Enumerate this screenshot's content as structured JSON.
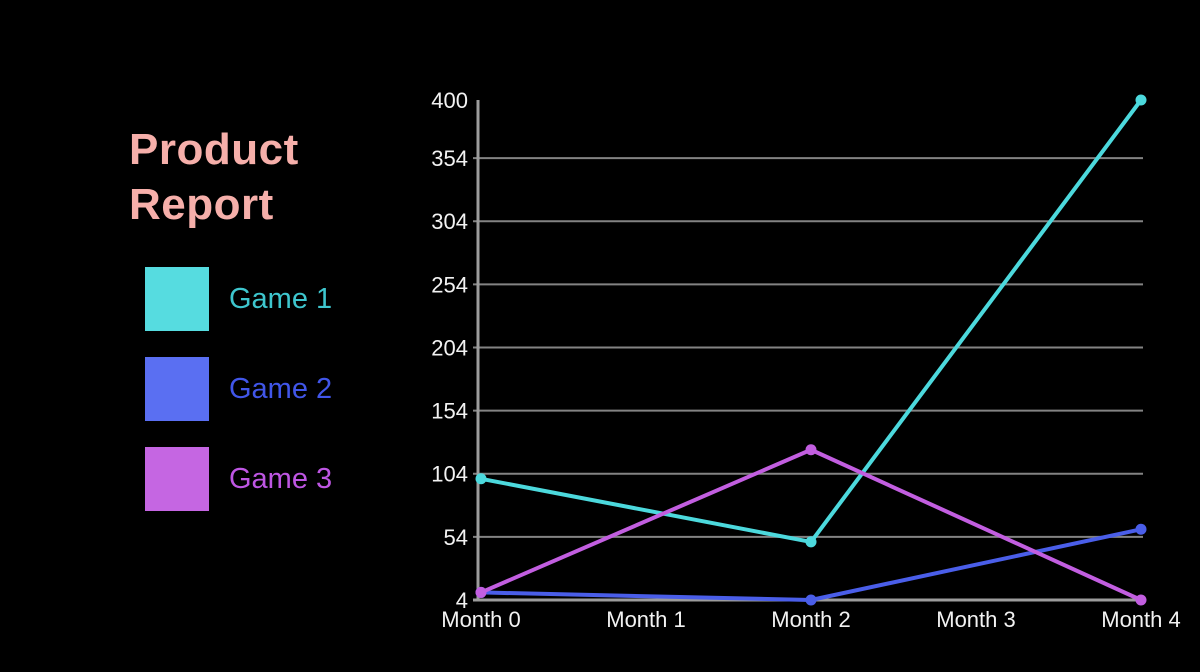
{
  "title": {
    "text": "Product Report",
    "color": "#f6afaa"
  },
  "legend": {
    "items": [
      {
        "label": "Game 1",
        "swatch_color": "#56dce0",
        "label_color": "#3ec6ce"
      },
      {
        "label": "Game 2",
        "swatch_color": "#5a6ff2",
        "label_color": "#4156e9"
      },
      {
        "label": "Game 3",
        "swatch_color": "#c566e2",
        "label_color": "#be56e3"
      }
    ]
  },
  "chart_data": {
    "type": "line",
    "title": "Product Report",
    "x_axis": {
      "tick_labels": [
        "Month 0",
        "Month 1",
        "Month 2",
        "Month 3",
        "Month 4"
      ],
      "range": [
        0,
        4
      ]
    },
    "y_axis": {
      "ticks": [
        4,
        54,
        104,
        154,
        204,
        254,
        304,
        354,
        400
      ],
      "range": [
        4,
        400
      ]
    },
    "x_points": [
      0,
      2,
      4
    ],
    "series": [
      {
        "name": "Game 1",
        "color": "#4cd9dd",
        "values": [
          100,
          50,
          400
        ]
      },
      {
        "name": "Game 2",
        "color": "#4a5ee9",
        "values": [
          10,
          4,
          60
        ]
      },
      {
        "name": "Game 3",
        "color": "#c25ee0",
        "values": [
          10,
          123,
          4
        ]
      }
    ],
    "grid": "horizontal",
    "gridline_color": "#838383",
    "axis_color": "#9c9c9c",
    "tick_label_color": "#f2f2f2",
    "legend_position": "left",
    "background": "#000000"
  }
}
